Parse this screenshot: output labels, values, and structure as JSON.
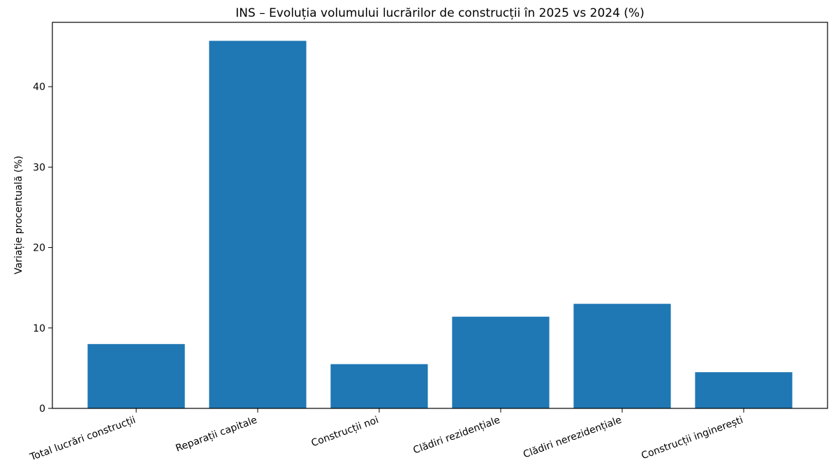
{
  "chart_data": {
    "type": "bar",
    "title": "INS – Evoluția volumului lucrărilor de construcții în 2025 vs 2024 (%)",
    "xlabel": "",
    "ylabel": "Variație procentuală (%)",
    "categories": [
      "Total lucrări construcții",
      "Reparații capitale",
      "Construcții noi",
      "Clădiri rezidențiale",
      "Clădiri nerezidențiale",
      "Construcții inginerești"
    ],
    "values": [
      8.0,
      45.7,
      5.5,
      11.4,
      13.0,
      4.5
    ],
    "ylim": [
      0,
      48
    ],
    "yticks": [
      0,
      10,
      20,
      30,
      40
    ],
    "grid": false,
    "bar_color": "#1f77b4"
  }
}
